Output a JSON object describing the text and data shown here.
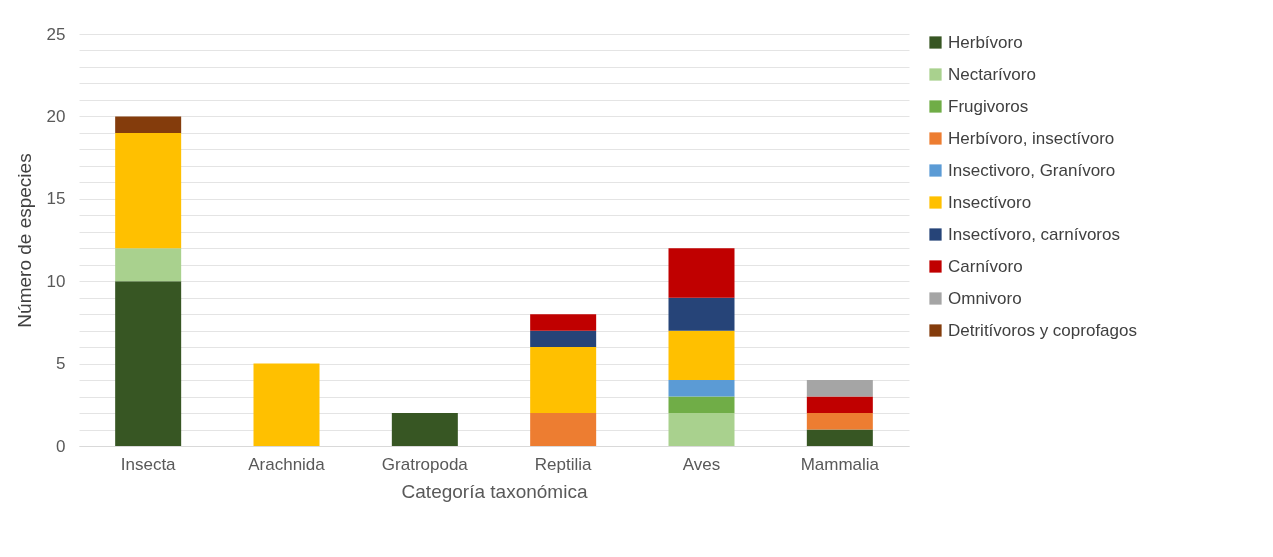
{
  "chart_data": {
    "type": "bar",
    "stacked": true,
    "xlabel": "Categoría taxonómica",
    "ylabel": "Número de especies",
    "categories": [
      "Insecta",
      "Arachnida",
      "Gratropoda",
      "Reptilia",
      "Aves",
      "Mammalia"
    ],
    "ylim": [
      0,
      25
    ],
    "yticks": [
      0,
      {
        "value": 1,
        "label": null
      },
      {
        "value": 2,
        "label": null
      },
      {
        "value": 3,
        "label": null
      },
      {
        "value": 4,
        "label": null
      },
      5,
      {
        "value": 6,
        "label": null
      },
      {
        "value": 7,
        "label": null
      },
      {
        "value": 8,
        "label": null
      },
      {
        "value": 9,
        "label": null
      },
      10,
      {
        "value": 11,
        "label": null
      },
      {
        "value": 12,
        "label": null
      },
      {
        "value": 13,
        "label": null
      },
      {
        "value": 14,
        "label": null
      },
      15,
      {
        "value": 16,
        "label": null
      },
      {
        "value": 17,
        "label": null
      },
      {
        "value": 18,
        "label": null
      },
      {
        "value": 19,
        "label": null
      },
      20,
      {
        "value": 21,
        "label": null
      },
      {
        "value": 22,
        "label": null
      },
      {
        "value": 23,
        "label": null
      },
      {
        "value": 24,
        "label": null
      },
      25
    ],
    "grid": "y",
    "legend": "right",
    "series": [
      {
        "name": "Herbívoro",
        "color": "#375623",
        "values": [
          10,
          null,
          2,
          null,
          null,
          1
        ]
      },
      {
        "name": "Nectarívoro",
        "color": "#a9d18e",
        "values": [
          2,
          null,
          null,
          null,
          2,
          null
        ]
      },
      {
        "name": "Frugivoros",
        "color": "#70ad47",
        "values": [
          null,
          null,
          null,
          null,
          1,
          null
        ]
      },
      {
        "name": "Herbívoro, insectívoro",
        "color": "#ed7d31",
        "values": [
          null,
          null,
          null,
          2,
          null,
          1
        ]
      },
      {
        "name": "Insectivoro, Granívoro",
        "color": "#5b9bd5",
        "values": [
          null,
          null,
          null,
          null,
          1,
          null
        ]
      },
      {
        "name": "Insectívoro",
        "color": "#ffc000",
        "values": [
          7,
          5,
          null,
          4,
          3,
          null
        ]
      },
      {
        "name": "Insectívoro, carnívoros",
        "color": "#264478",
        "values": [
          null,
          null,
          null,
          1,
          2,
          null
        ]
      },
      {
        "name": "Carnívoro",
        "color": "#c00000",
        "values": [
          null,
          null,
          null,
          1,
          3,
          1
        ]
      },
      {
        "name": "Omnivoro",
        "color": "#a5a5a5",
        "values": [
          null,
          null,
          null,
          null,
          null,
          1
        ]
      },
      {
        "name": "Detritívoros y coprofagos",
        "color": "#843c0c",
        "values": [
          1,
          null,
          null,
          null,
          null,
          null
        ]
      }
    ]
  }
}
